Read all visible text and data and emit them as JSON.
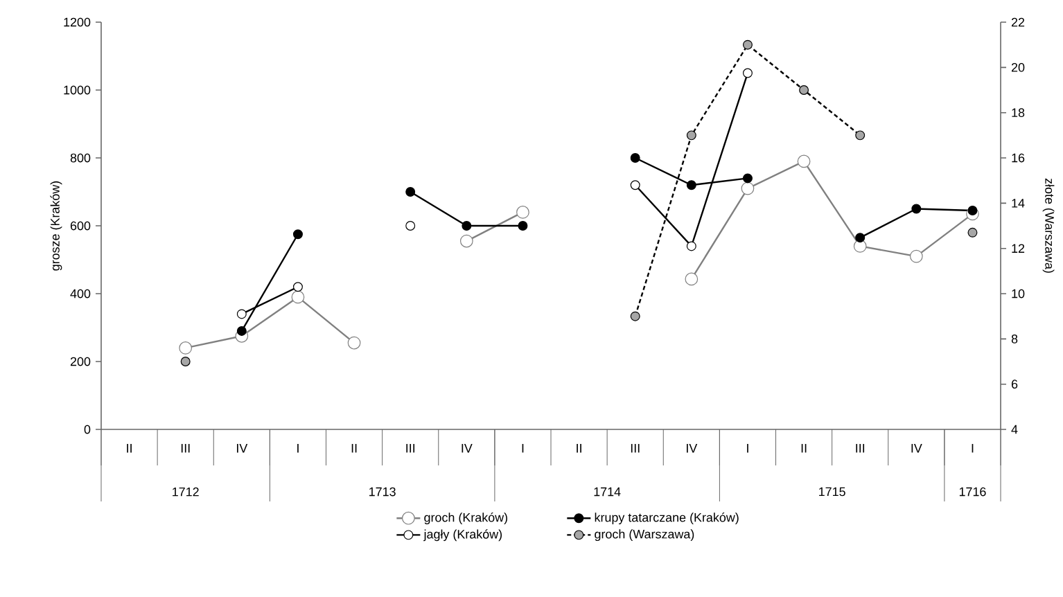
{
  "chart_data": {
    "type": "line",
    "categories": [
      "II",
      "III",
      "IV",
      "I",
      "II",
      "III",
      "IV",
      "I",
      "II",
      "III",
      "IV",
      "I",
      "II",
      "III",
      "IV",
      "I"
    ],
    "ylabel": "grosze (Kraków)",
    "y2label": "złote (Warszawa)",
    "ylim": [
      0,
      1200
    ],
    "yticks": [
      0,
      200,
      400,
      600,
      800,
      1000,
      1200
    ],
    "y2lim": [
      4,
      22
    ],
    "y2ticks": [
      4,
      6,
      8,
      10,
      12,
      14,
      16,
      18,
      20,
      22
    ],
    "annotations": [
      "1712",
      "1713",
      "1714",
      "1715",
      "1716"
    ],
    "marker": "circle",
    "legend": "bottom",
    "grid": false,
    "series": [
      {
        "name": "groch (Kraków)",
        "color": "#808080",
        "values": [
          null,
          240,
          275,
          390,
          255,
          null,
          555,
          640,
          null,
          null,
          443,
          710,
          790,
          540,
          510,
          635
        ]
      },
      {
        "name": "krupy tatarczane (Kraków)",
        "color": "#000000",
        "values": [
          null,
          null,
          290,
          575,
          null,
          700,
          600,
          600,
          null,
          800,
          720,
          740,
          null,
          565,
          650,
          645
        ]
      },
      {
        "name": "jagły (Kraków)",
        "color": "#000000",
        "values": [
          null,
          null,
          340,
          420,
          null,
          600,
          null,
          null,
          null,
          720,
          540,
          1050,
          null,
          null,
          null,
          null
        ]
      },
      {
        "name": "groch (Warszawa)",
        "color": "#000000",
        "axis": "y2",
        "line_style": "dashed",
        "values": [
          null,
          7,
          null,
          null,
          null,
          null,
          null,
          null,
          null,
          9,
          17,
          21,
          19,
          17,
          null,
          12.7
        ]
      }
    ]
  }
}
